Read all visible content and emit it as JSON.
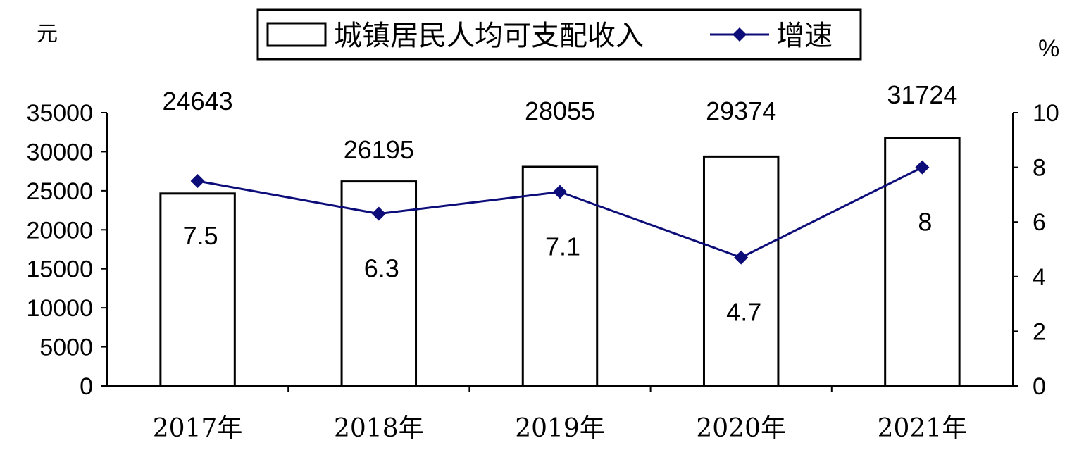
{
  "chart_data": {
    "type": "bar+line",
    "categories": [
      "2017年",
      "2018年",
      "2019年",
      "2020年",
      "2021年"
    ],
    "series": [
      {
        "name": "城镇居民人均可支配收入",
        "type": "bar",
        "axis": "left",
        "values": [
          24643,
          26195,
          28055,
          29374,
          31724
        ],
        "labels": [
          "24643",
          "26195",
          "28055",
          "29374",
          "31724"
        ]
      },
      {
        "name": "增速",
        "type": "line",
        "axis": "right",
        "values": [
          7.5,
          6.3,
          7.1,
          4.7,
          8
        ],
        "labels": [
          "7.5",
          "6.3",
          "7.1",
          "4.7",
          "8"
        ],
        "color": "#0d0d7a"
      }
    ],
    "y_left": {
      "unit": "元",
      "range": [
        0,
        35000
      ],
      "ticks": [
        0,
        5000,
        10000,
        15000,
        20000,
        25000,
        30000,
        35000
      ],
      "tick_labels": [
        "0",
        "5000",
        "10000",
        "15000",
        "20000",
        "25000",
        "30000",
        "35000"
      ]
    },
    "y_right": {
      "unit": "%",
      "range": [
        0,
        10
      ],
      "ticks": [
        0,
        2,
        4,
        6,
        8,
        10
      ],
      "tick_labels": [
        "0",
        "2",
        "4",
        "6",
        "8",
        "10"
      ]
    },
    "legend": {
      "position": "top-center",
      "bordered": true
    },
    "grid": false
  }
}
